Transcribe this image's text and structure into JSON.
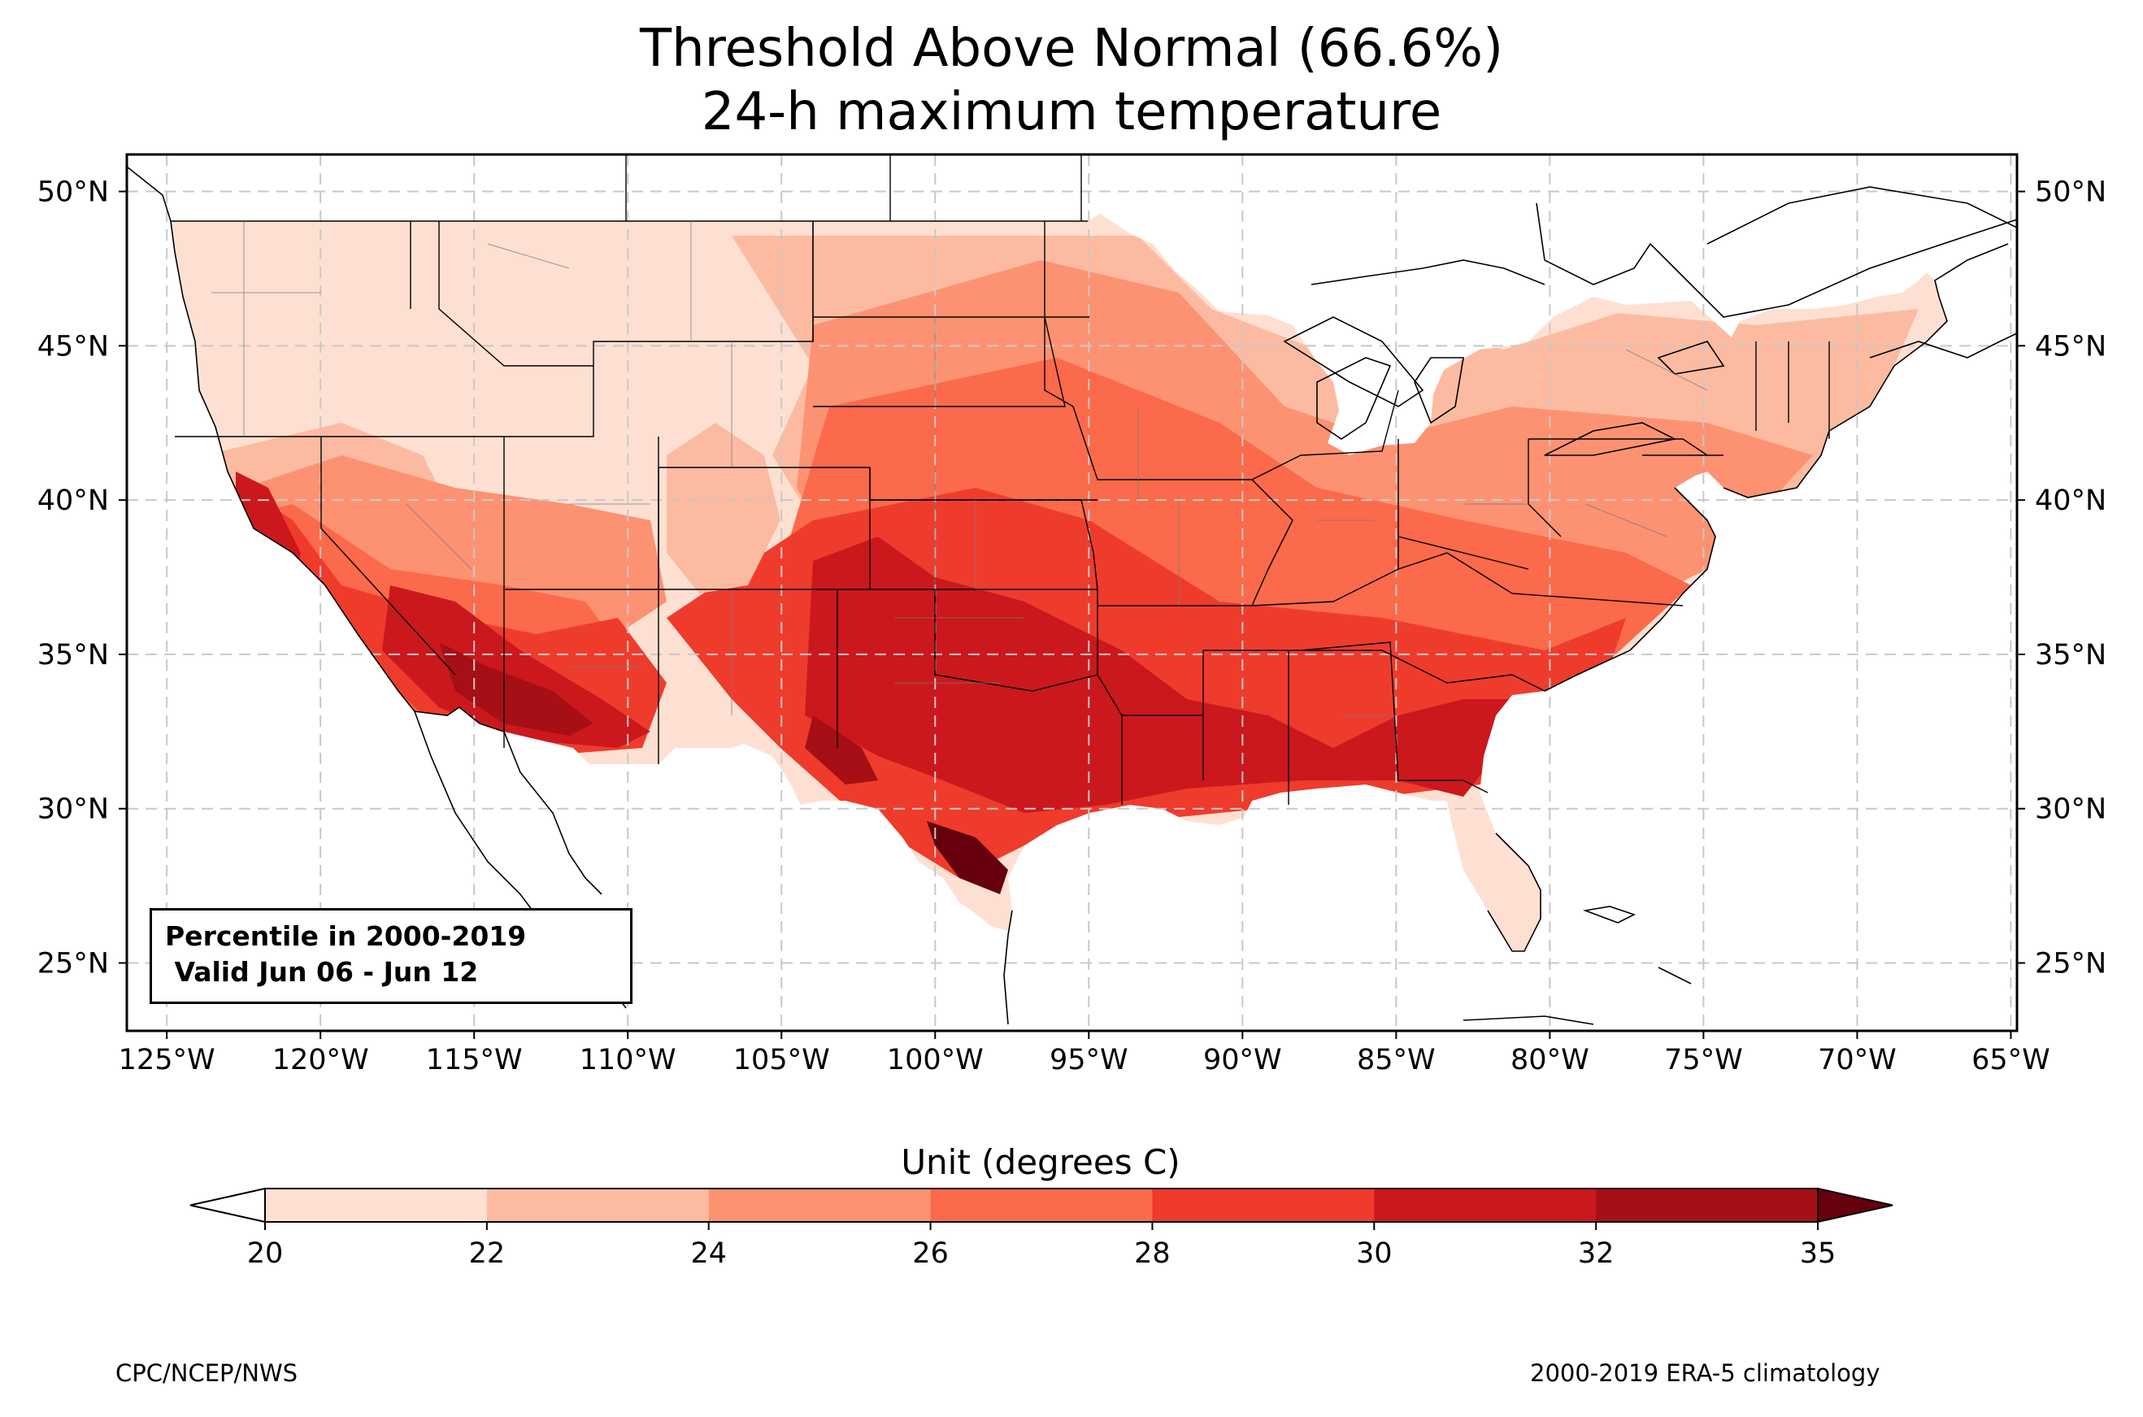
{
  "title": {
    "line1": "Threshold Above Normal (66.6%)",
    "line2": "24-h maximum temperature"
  },
  "map": {
    "region": "Contiguous United States",
    "lon_range": [
      -126.3,
      -64.8
    ],
    "lat_range": [
      22.8,
      51.2
    ],
    "lon_ticks": [
      "125°W",
      "120°W",
      "115°W",
      "110°W",
      "105°W",
      "100°W",
      "95°W",
      "90°W",
      "85°W",
      "80°W",
      "75°W",
      "70°W",
      "65°W"
    ],
    "lat_ticks": [
      "50°N",
      "45°N",
      "40°N",
      "35°N",
      "30°N",
      "25°N"
    ],
    "gridlines": true,
    "colors": {
      "lt20": "#ffffff",
      "c20_22": "#fee0d2",
      "c22_24": "#fcbba1",
      "c24_26": "#fc9272",
      "c26_28": "#fb6a4a",
      "c28_30": "#ef3b2c",
      "c30_32": "#cb181d",
      "c32_35": "#a50f15",
      "gt35": "#67000d"
    }
  },
  "infobox": {
    "line1": "Percentile in 2000-2019",
    "line2": " Valid Jun 06 - Jun 12"
  },
  "colorbar": {
    "label": "Unit (degrees C)",
    "ticks": [
      "20",
      "22",
      "24",
      "26",
      "28",
      "30",
      "32",
      "35"
    ],
    "extend": "both"
  },
  "footer": {
    "left": "CPC/NCEP/NWS",
    "right": "2000-2019 ERA-5 climatology"
  }
}
